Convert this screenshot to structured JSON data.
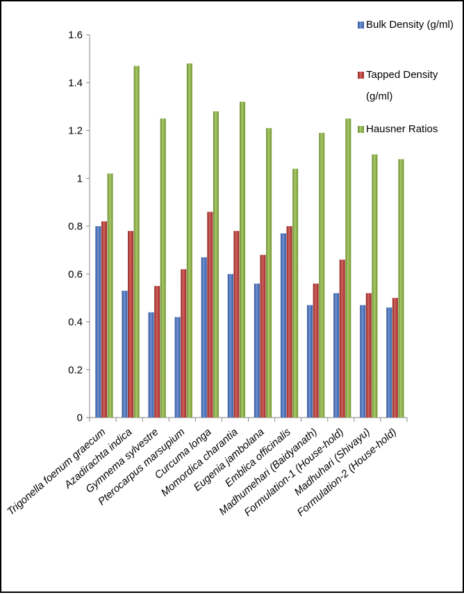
{
  "chart_data": {
    "type": "bar",
    "title": "",
    "xlabel": "",
    "ylabel": "",
    "ylim": [
      0,
      1.6
    ],
    "yticks": [
      "0",
      "0.2",
      "0.4",
      "0.6",
      "0.8",
      "1",
      "1.2",
      "1.4",
      "1.6"
    ],
    "grid": false,
    "legend_position": "top-right",
    "categories": [
      "Trigonella foenum graecum",
      "Azadirachta indica",
      "Gymnema sylvestre",
      "Pterocarpus marsupium",
      "Curcuma longa",
      "Momordica charantia",
      "Eugenia jambolana",
      "Emblica officinalis",
      "Madhumehari (Baidyanath)",
      "Formulation-1 (House-hold)",
      "Madhuhari (Shivayu)",
      "Formulation-2 (House-hold)"
    ],
    "series": [
      {
        "name": "Bulk Density (g/ml)",
        "color": "#3f6fc6",
        "values": [
          0.8,
          0.53,
          0.44,
          0.42,
          0.67,
          0.6,
          0.56,
          0.77,
          0.47,
          0.52,
          0.47,
          0.46
        ]
      },
      {
        "name": "Tapped Density (g/ml)",
        "color": "#c0302b",
        "values": [
          0.82,
          0.78,
          0.55,
          0.62,
          0.86,
          0.78,
          0.68,
          0.8,
          0.56,
          0.66,
          0.52,
          0.5
        ]
      },
      {
        "name": "Hausner Ratios",
        "color": "#8cb83a",
        "values": [
          1.02,
          1.47,
          1.25,
          1.48,
          1.28,
          1.32,
          1.21,
          1.04,
          1.19,
          1.25,
          1.1,
          1.08
        ]
      }
    ]
  },
  "legend": {
    "items": [
      {
        "lines": [
          "Bulk Density (g/ml)"
        ]
      },
      {
        "lines": [
          "Tapped Density",
          "(g/ml)"
        ]
      },
      {
        "lines": [
          "Hausner Ratios"
        ]
      }
    ]
  }
}
